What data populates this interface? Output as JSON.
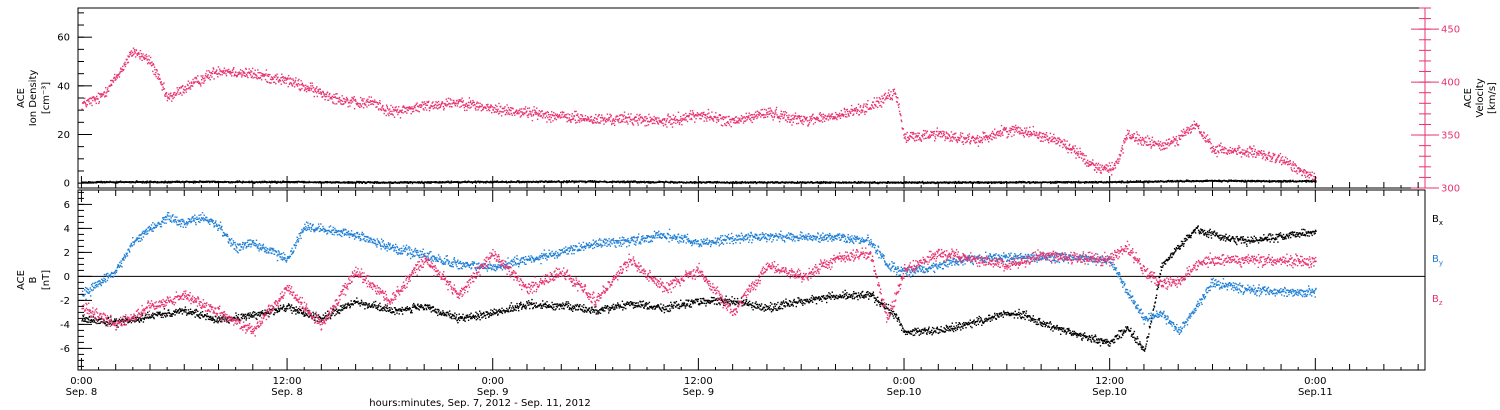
{
  "chart_data": {
    "type": "scatter",
    "colors": {
      "density": "#000000",
      "velocity": "#e8336e",
      "bx": "#000000",
      "by": "#1f7fd6",
      "bz": "#e8336e"
    },
    "x_tick_labels": [
      {
        "hours": 0,
        "time": "0:00",
        "day": "Sep. 8"
      },
      {
        "hours": 12,
        "time": "12:00",
        "day": "Sep. 8"
      },
      {
        "hours": 24,
        "time": "0:00",
        "day": "Sep. 9"
      },
      {
        "hours": 36,
        "time": "12:00",
        "day": "Sep. 9"
      },
      {
        "hours": 48,
        "time": "0:00",
        "day": "Sep.10"
      },
      {
        "hours": 60,
        "time": "12:00",
        "day": "Sep.10"
      },
      {
        "hours": 72,
        "time": "0:00",
        "day": "Sep.11"
      }
    ],
    "xlabel": "hours:minutes, Sep.  7, 2012 - Sep. 11, 2012",
    "xlim_hours": [
      -0.2,
      78.4
    ],
    "panels": [
      {
        "name": "density-velocity",
        "left_axis": {
          "label_lines": [
            "ACE",
            "Ion Density",
            "[cm⁻³]"
          ],
          "ylim": [
            -2,
            72
          ],
          "ticks": [
            0,
            20,
            40,
            60
          ],
          "tick_labels": [
            "0",
            "20",
            "40",
            "60"
          ]
        },
        "right_axis": {
          "label_lines": [
            "ACE",
            "Velocity",
            "[km/s]"
          ],
          "ylim": [
            300,
            470
          ],
          "ticks": [
            300,
            350,
            400,
            450
          ],
          "tick_labels": [
            "300",
            "350",
            "400",
            "450"
          ]
        },
        "series": [
          {
            "key": "velocity",
            "axis": "right",
            "spread": 8,
            "x": [
              0,
              1,
              2,
              3,
              4,
              5,
              6,
              8,
              10,
              12,
              14,
              15,
              16,
              17,
              18,
              20,
              22,
              24,
              26,
              28,
              30,
              32,
              34,
              36,
              38,
              40,
              42,
              44,
              46,
              47.5,
              48,
              50,
              52,
              54,
              55,
              56,
              57,
              58,
              59,
              60,
              60.5,
              61,
              62,
              63,
              64,
              65,
              66,
              68,
              70,
              72
            ],
            "y": [
              380,
              385,
              405,
              430,
              420,
              385,
              395,
              412,
              408,
              402,
              390,
              385,
              380,
              382,
              372,
              378,
              382,
              375,
              372,
              368,
              365,
              366,
              363,
              370,
              363,
              372,
              365,
              368,
              378,
              390,
              348,
              352,
              345,
              355,
              355,
              350,
              345,
              335,
              322,
              318,
              328,
              350,
              345,
              340,
              348,
              360,
              337,
              335,
              327,
              310
            ]
          },
          {
            "key": "density",
            "axis": "left",
            "spread": 0.5,
            "x": [
              0,
              6,
              12,
              18,
              24,
              30,
              36,
              42,
              48,
              54,
              60,
              66,
              72
            ],
            "y": [
              0.6,
              0.8,
              0.7,
              0.5,
              0.8,
              0.9,
              0.6,
              0.5,
              0.5,
              0.6,
              0.7,
              1.2,
              1.0
            ]
          }
        ]
      },
      {
        "name": "magnetic-field",
        "left_axis": {
          "label_lines": [
            "ACE",
            "B",
            "[nT]"
          ],
          "ylim": [
            -7.8,
            7.2
          ],
          "ticks": [
            -6,
            -4,
            -2,
            0,
            2,
            4,
            6
          ],
          "tick_labels": [
            "-6",
            "-4",
            "-2",
            "0",
            "2",
            "4",
            "6"
          ]
        },
        "legend": [
          {
            "key": "bx",
            "label": "B",
            "sub": "x"
          },
          {
            "key": "by",
            "label": "B",
            "sub": "y"
          },
          {
            "key": "bz",
            "label": "B",
            "sub": "z"
          }
        ],
        "series": [
          {
            "key": "bx",
            "spread": 0.5,
            "x": [
              0,
              2,
              4,
              6,
              8,
              10,
              12,
              14,
              16,
              18,
              20,
              22,
              24,
              26,
              28,
              30,
              32,
              34,
              36,
              38,
              40,
              42,
              44,
              46,
              47.5,
              48,
              50,
              52,
              54,
              55,
              56,
              58,
              60,
              61,
              62,
              62.5,
              63,
              64,
              65,
              66,
              68,
              70,
              72
            ],
            "y": [
              -3.5,
              -3.8,
              -3.2,
              -2.8,
              -3.6,
              -3.2,
              -2.5,
              -3.5,
              -2.0,
              -2.8,
              -2.5,
              -3.5,
              -3.0,
              -2.3,
              -2.4,
              -2.8,
              -2.2,
              -2.6,
              -2.0,
              -2.0,
              -2.6,
              -2.0,
              -1.6,
              -1.5,
              -3.2,
              -4.6,
              -4.5,
              -3.8,
              -3.0,
              -3.2,
              -3.8,
              -4.8,
              -5.5,
              -4.2,
              -6.2,
              -3.0,
              1.0,
              2.5,
              4.0,
              3.5,
              3.0,
              3.4,
              3.8
            ]
          },
          {
            "key": "by",
            "spread": 0.6,
            "x": [
              0,
              2,
              3,
              4,
              5,
              6,
              7,
              8,
              9,
              10,
              12,
              13,
              14,
              16,
              18,
              20,
              22,
              24,
              26,
              28,
              30,
              32,
              34,
              36,
              38,
              40,
              42,
              44,
              46,
              47,
              48,
              50,
              52,
              54,
              56,
              58,
              60,
              61,
              62,
              63,
              64,
              65,
              66,
              68,
              70,
              72
            ],
            "y": [
              -1.5,
              0.5,
              3.0,
              4.0,
              5.0,
              4.5,
              5.0,
              4.2,
              2.5,
              2.8,
              1.5,
              4.2,
              4.0,
              3.5,
              2.5,
              1.8,
              1.0,
              0.8,
              1.5,
              2.0,
              2.8,
              3.0,
              3.5,
              2.8,
              3.2,
              3.4,
              3.3,
              3.3,
              3.0,
              1.0,
              0.4,
              1.0,
              1.6,
              1.6,
              1.6,
              1.6,
              1.4,
              -1.2,
              -3.5,
              -3.0,
              -4.5,
              -2.5,
              -0.5,
              -1.0,
              -1.2,
              -1.3
            ]
          },
          {
            "key": "bz",
            "spread": 0.7,
            "x": [
              0,
              2,
              4,
              6,
              8,
              10,
              12,
              14,
              16,
              18,
              20,
              22,
              24,
              26,
              28,
              30,
              32,
              34,
              36,
              38,
              40,
              42,
              44,
              46,
              47,
              48,
              50,
              52,
              54,
              56,
              58,
              60,
              61,
              62,
              63,
              64,
              65,
              66,
              68,
              70,
              72
            ],
            "y": [
              -2.5,
              -4.0,
              -2.5,
              -1.5,
              -3.0,
              -4.5,
              -1.0,
              -4.0,
              0.5,
              -2.0,
              1.5,
              -1.5,
              2.0,
              -1.0,
              0.5,
              -2.0,
              1.5,
              -1.0,
              0.5,
              -3.0,
              1.0,
              0.0,
              1.5,
              2.0,
              -3.5,
              0.5,
              2.0,
              1.5,
              1.0,
              1.8,
              1.6,
              1.5,
              2.5,
              0.5,
              -0.5,
              -0.5,
              1.0,
              1.5,
              1.4,
              1.3,
              1.2
            ]
          }
        ]
      }
    ]
  }
}
